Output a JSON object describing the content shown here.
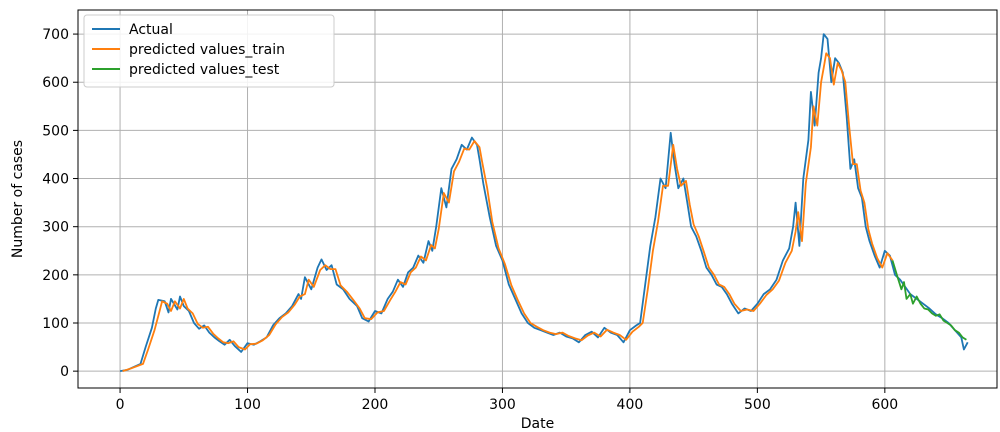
{
  "chart_data": {
    "type": "line",
    "xlabel": "Date",
    "ylabel": "Number of cases",
    "xlim": [
      -33,
      688
    ],
    "ylim": [
      -35,
      750
    ],
    "xticks": [
      0,
      100,
      200,
      300,
      400,
      500,
      600
    ],
    "yticks": [
      0,
      100,
      200,
      300,
      400,
      500,
      600,
      700
    ],
    "grid": true,
    "legend_position": "top-left",
    "series": [
      {
        "name": "Actual",
        "color": "#1f77b4",
        "points": [
          [
            0,
            0
          ],
          [
            6,
            3
          ],
          [
            16,
            15
          ],
          [
            20,
            50
          ],
          [
            25,
            90
          ],
          [
            28,
            130
          ],
          [
            30,
            148
          ],
          [
            35,
            145
          ],
          [
            38,
            122
          ],
          [
            40,
            150
          ],
          [
            45,
            128
          ],
          [
            47,
            155
          ],
          [
            50,
            135
          ],
          [
            54,
            125
          ],
          [
            58,
            100
          ],
          [
            62,
            88
          ],
          [
            66,
            95
          ],
          [
            70,
            80
          ],
          [
            74,
            70
          ],
          [
            78,
            62
          ],
          [
            82,
            55
          ],
          [
            86,
            65
          ],
          [
            90,
            52
          ],
          [
            95,
            40
          ],
          [
            100,
            58
          ],
          [
            105,
            55
          ],
          [
            110,
            62
          ],
          [
            115,
            70
          ],
          [
            120,
            95
          ],
          [
            125,
            110
          ],
          [
            130,
            120
          ],
          [
            135,
            135
          ],
          [
            140,
            160
          ],
          [
            142,
            150
          ],
          [
            145,
            195
          ],
          [
            150,
            170
          ],
          [
            155,
            215
          ],
          [
            158,
            232
          ],
          [
            162,
            210
          ],
          [
            166,
            220
          ],
          [
            170,
            180
          ],
          [
            175,
            170
          ],
          [
            180,
            150
          ],
          [
            186,
            135
          ],
          [
            190,
            110
          ],
          [
            195,
            103
          ],
          [
            200,
            125
          ],
          [
            205,
            120
          ],
          [
            210,
            150
          ],
          [
            214,
            165
          ],
          [
            218,
            190
          ],
          [
            222,
            175
          ],
          [
            226,
            205
          ],
          [
            230,
            215
          ],
          [
            234,
            240
          ],
          [
            238,
            225
          ],
          [
            242,
            270
          ],
          [
            245,
            250
          ],
          [
            248,
            300
          ],
          [
            252,
            380
          ],
          [
            256,
            340
          ],
          [
            260,
            420
          ],
          [
            264,
            440
          ],
          [
            268,
            470
          ],
          [
            272,
            460
          ],
          [
            276,
            485
          ],
          [
            280,
            470
          ],
          [
            282,
            440
          ],
          [
            285,
            390
          ],
          [
            290,
            320
          ],
          [
            295,
            260
          ],
          [
            300,
            230
          ],
          [
            305,
            180
          ],
          [
            310,
            150
          ],
          [
            315,
            120
          ],
          [
            320,
            100
          ],
          [
            325,
            90
          ],
          [
            330,
            85
          ],
          [
            335,
            80
          ],
          [
            340,
            75
          ],
          [
            345,
            80
          ],
          [
            350,
            72
          ],
          [
            355,
            68
          ],
          [
            360,
            60
          ],
          [
            365,
            75
          ],
          [
            370,
            82
          ],
          [
            375,
            70
          ],
          [
            380,
            90
          ],
          [
            385,
            80
          ],
          [
            390,
            75
          ],
          [
            395,
            60
          ],
          [
            400,
            85
          ],
          [
            405,
            95
          ],
          [
            408,
            100
          ],
          [
            412,
            180
          ],
          [
            416,
            260
          ],
          [
            420,
            320
          ],
          [
            424,
            400
          ],
          [
            428,
            380
          ],
          [
            432,
            495
          ],
          [
            435,
            430
          ],
          [
            438,
            380
          ],
          [
            442,
            400
          ],
          [
            445,
            350
          ],
          [
            448,
            300
          ],
          [
            452,
            280
          ],
          [
            456,
            250
          ],
          [
            460,
            215
          ],
          [
            464,
            200
          ],
          [
            468,
            180
          ],
          [
            472,
            175
          ],
          [
            476,
            160
          ],
          [
            480,
            140
          ],
          [
            485,
            120
          ],
          [
            490,
            130
          ],
          [
            495,
            125
          ],
          [
            500,
            140
          ],
          [
            505,
            160
          ],
          [
            510,
            170
          ],
          [
            515,
            190
          ],
          [
            520,
            230
          ],
          [
            525,
            255
          ],
          [
            528,
            300
          ],
          [
            530,
            350
          ],
          [
            533,
            260
          ],
          [
            536,
            400
          ],
          [
            540,
            480
          ],
          [
            542,
            580
          ],
          [
            545,
            510
          ],
          [
            548,
            620
          ],
          [
            550,
            650
          ],
          [
            552,
            700
          ],
          [
            555,
            690
          ],
          [
            558,
            600
          ],
          [
            561,
            650
          ],
          [
            564,
            640
          ],
          [
            567,
            620
          ],
          [
            570,
            530
          ],
          [
            573,
            420
          ],
          [
            576,
            440
          ],
          [
            579,
            380
          ],
          [
            582,
            360
          ],
          [
            585,
            300
          ],
          [
            588,
            270
          ],
          [
            592,
            240
          ],
          [
            596,
            215
          ],
          [
            600,
            250
          ],
          [
            604,
            240
          ],
          [
            608,
            200
          ],
          [
            612,
            190
          ],
          [
            616,
            175
          ],
          [
            620,
            160
          ],
          [
            625,
            150
          ],
          [
            630,
            140
          ],
          [
            635,
            130
          ],
          [
            640,
            118
          ],
          [
            645,
            110
          ],
          [
            650,
            100
          ],
          [
            655,
            85
          ],
          [
            660,
            70
          ],
          [
            662,
            45
          ],
          [
            665,
            60
          ]
        ]
      },
      {
        "name": "predicted values_train",
        "color": "#ff7f0e",
        "points": [
          [
            2,
            0
          ],
          [
            8,
            5
          ],
          [
            18,
            15
          ],
          [
            22,
            45
          ],
          [
            27,
            85
          ],
          [
            31,
            125
          ],
          [
            33,
            145
          ],
          [
            37,
            140
          ],
          [
            40,
            125
          ],
          [
            43,
            145
          ],
          [
            47,
            130
          ],
          [
            50,
            150
          ],
          [
            53,
            130
          ],
          [
            57,
            120
          ],
          [
            61,
            98
          ],
          [
            65,
            90
          ],
          [
            69,
            92
          ],
          [
            73,
            78
          ],
          [
            77,
            68
          ],
          [
            81,
            60
          ],
          [
            85,
            58
          ],
          [
            89,
            62
          ],
          [
            93,
            50
          ],
          [
            98,
            45
          ],
          [
            102,
            56
          ],
          [
            107,
            57
          ],
          [
            112,
            64
          ],
          [
            117,
            75
          ],
          [
            122,
            97
          ],
          [
            127,
            112
          ],
          [
            132,
            122
          ],
          [
            137,
            138
          ],
          [
            141,
            155
          ],
          [
            145,
            160
          ],
          [
            148,
            190
          ],
          [
            152,
            175
          ],
          [
            157,
            210
          ],
          [
            161,
            220
          ],
          [
            165,
            212
          ],
          [
            169,
            212
          ],
          [
            173,
            178
          ],
          [
            178,
            165
          ],
          [
            183,
            148
          ],
          [
            188,
            130
          ],
          [
            192,
            110
          ],
          [
            197,
            108
          ],
          [
            202,
            122
          ],
          [
            207,
            125
          ],
          [
            212,
            148
          ],
          [
            216,
            165
          ],
          [
            220,
            185
          ],
          [
            224,
            180
          ],
          [
            228,
            205
          ],
          [
            232,
            215
          ],
          [
            236,
            238
          ],
          [
            240,
            230
          ],
          [
            244,
            262
          ],
          [
            247,
            255
          ],
          [
            250,
            295
          ],
          [
            254,
            370
          ],
          [
            258,
            350
          ],
          [
            262,
            415
          ],
          [
            266,
            435
          ],
          [
            270,
            462
          ],
          [
            274,
            460
          ],
          [
            278,
            478
          ],
          [
            282,
            465
          ],
          [
            284,
            435
          ],
          [
            288,
            380
          ],
          [
            292,
            310
          ],
          [
            297,
            255
          ],
          [
            302,
            222
          ],
          [
            307,
            178
          ],
          [
            312,
            148
          ],
          [
            317,
            120
          ],
          [
            322,
            100
          ],
          [
            327,
            92
          ],
          [
            332,
            85
          ],
          [
            337,
            80
          ],
          [
            342,
            77
          ],
          [
            347,
            80
          ],
          [
            352,
            73
          ],
          [
            357,
            68
          ],
          [
            362,
            64
          ],
          [
            367,
            74
          ],
          [
            372,
            80
          ],
          [
            377,
            72
          ],
          [
            382,
            86
          ],
          [
            387,
            80
          ],
          [
            392,
            75
          ],
          [
            397,
            65
          ],
          [
            402,
            82
          ],
          [
            407,
            92
          ],
          [
            410,
            100
          ],
          [
            414,
            170
          ],
          [
            418,
            250
          ],
          [
            422,
            310
          ],
          [
            426,
            385
          ],
          [
            430,
            385
          ],
          [
            434,
            470
          ],
          [
            437,
            420
          ],
          [
            440,
            385
          ],
          [
            444,
            395
          ],
          [
            447,
            345
          ],
          [
            450,
            305
          ],
          [
            454,
            280
          ],
          [
            458,
            248
          ],
          [
            462,
            215
          ],
          [
            466,
            200
          ],
          [
            470,
            180
          ],
          [
            474,
            175
          ],
          [
            478,
            160
          ],
          [
            482,
            140
          ],
          [
            487,
            125
          ],
          [
            492,
            128
          ],
          [
            497,
            125
          ],
          [
            502,
            140
          ],
          [
            507,
            158
          ],
          [
            512,
            170
          ],
          [
            517,
            188
          ],
          [
            522,
            225
          ],
          [
            527,
            250
          ],
          [
            530,
            290
          ],
          [
            532,
            330
          ],
          [
            535,
            270
          ],
          [
            538,
            390
          ],
          [
            542,
            465
          ],
          [
            544,
            550
          ],
          [
            547,
            510
          ],
          [
            550,
            600
          ],
          [
            552,
            630
          ],
          [
            554,
            660
          ],
          [
            557,
            650
          ],
          [
            560,
            595
          ],
          [
            563,
            640
          ],
          [
            566,
            625
          ],
          [
            569,
            600
          ],
          [
            572,
            510
          ],
          [
            575,
            430
          ],
          [
            578,
            430
          ],
          [
            581,
            375
          ],
          [
            584,
            350
          ],
          [
            587,
            295
          ],
          [
            590,
            265
          ],
          [
            594,
            235
          ],
          [
            598,
            215
          ],
          [
            602,
            245
          ],
          [
            606,
            230
          ]
        ]
      },
      {
        "name": "predicted values_test",
        "color": "#2ca02c",
        "points": [
          [
            606,
            230
          ],
          [
            610,
            195
          ],
          [
            613,
            170
          ],
          [
            615,
            185
          ],
          [
            617,
            150
          ],
          [
            620,
            160
          ],
          [
            622,
            140
          ],
          [
            625,
            155
          ],
          [
            628,
            140
          ],
          [
            631,
            130
          ],
          [
            634,
            128
          ],
          [
            637,
            120
          ],
          [
            640,
            115
          ],
          [
            643,
            118
          ],
          [
            646,
            105
          ],
          [
            649,
            100
          ],
          [
            652,
            95
          ],
          [
            655,
            85
          ],
          [
            658,
            80
          ],
          [
            661,
            70
          ],
          [
            664,
            65
          ]
        ]
      }
    ]
  }
}
